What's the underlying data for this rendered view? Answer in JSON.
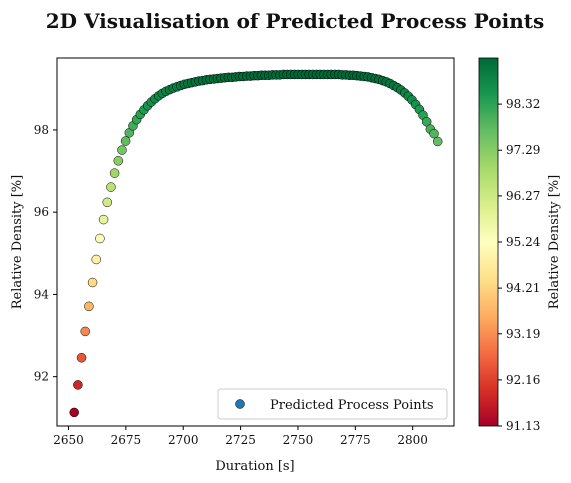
{
  "chart_data": {
    "type": "scatter",
    "title": "2D Visualisation of Predicted Process Points",
    "xlabel": "Duration [s]",
    "ylabel": "Relative Density [%]",
    "xlim": [
      2645,
      2818
    ],
    "ylim": [
      90.8,
      99.75
    ],
    "xticks": [
      2650,
      2675,
      2700,
      2725,
      2750,
      2775,
      2800
    ],
    "yticks": [
      92,
      94,
      96,
      98
    ],
    "colormap": "RdYlGn",
    "colorbar": {
      "label": "Relative Density [%]",
      "ticks": [
        91.13,
        92.16,
        93.19,
        94.21,
        95.24,
        96.27,
        97.29,
        98.32
      ],
      "range": [
        91.13,
        99.35
      ]
    },
    "legend": {
      "label": "Predicted Process Points",
      "placement": "lower right",
      "marker_color": "#1f77b4"
    },
    "grid": false,
    "series": [
      {
        "name": "Predicted Process Points",
        "x": [
          2652.5,
          2654.1,
          2655.7,
          2657.3,
          2658.9,
          2660.5,
          2662.1,
          2663.7,
          2665.3,
          2666.9,
          2668.5,
          2670.1,
          2671.7,
          2673.3,
          2674.9,
          2676.5,
          2678.1,
          2679.7,
          2681.3,
          2682.9,
          2684.5,
          2686.1,
          2687.7,
          2689.3,
          2690.9,
          2692.5,
          2694.1,
          2695.7,
          2697.3,
          2698.9,
          2700.5,
          2702.1,
          2703.7,
          2705.3,
          2706.9,
          2708.5,
          2710.1,
          2711.7,
          2713.3,
          2714.9,
          2716.5,
          2718.1,
          2719.7,
          2721.3,
          2722.9,
          2724.5,
          2726.1,
          2727.7,
          2729.3,
          2730.9,
          2732.5,
          2734.1,
          2735.7,
          2737.3,
          2738.9,
          2740.5,
          2742.1,
          2743.7,
          2745.3,
          2746.9,
          2748.5,
          2750.1,
          2751.7,
          2753.3,
          2754.9,
          2756.5,
          2758.1,
          2759.7,
          2761.3,
          2762.9,
          2764.5,
          2766.1,
          2767.7,
          2769.3,
          2770.9,
          2772.5,
          2774.1,
          2775.7,
          2777.3,
          2778.9,
          2780.5,
          2782.1,
          2783.7,
          2785.3,
          2786.9,
          2788.5,
          2790.1,
          2791.7,
          2793.3,
          2794.9,
          2796.5,
          2798.1,
          2799.7,
          2801.3,
          2802.9,
          2804.5,
          2806.1,
          2807.7,
          2809.3,
          2810.9
        ],
        "y": [
          91.13,
          91.8,
          92.46,
          93.1,
          93.71,
          94.29,
          94.85,
          95.36,
          95.82,
          96.24,
          96.61,
          96.95,
          97.25,
          97.51,
          97.73,
          97.93,
          98.1,
          98.25,
          98.38,
          98.49,
          98.59,
          98.68,
          98.76,
          98.83,
          98.89,
          98.94,
          98.98,
          99.02,
          99.05,
          99.08,
          99.11,
          99.13,
          99.15,
          99.17,
          99.19,
          99.2,
          99.22,
          99.23,
          99.24,
          99.25,
          99.26,
          99.27,
          99.28,
          99.28,
          99.29,
          99.3,
          99.3,
          99.31,
          99.31,
          99.32,
          99.32,
          99.33,
          99.33,
          99.33,
          99.34,
          99.34,
          99.34,
          99.35,
          99.35,
          99.35,
          99.35,
          99.35,
          99.35,
          99.35,
          99.35,
          99.35,
          99.35,
          99.35,
          99.35,
          99.35,
          99.35,
          99.35,
          99.35,
          99.34,
          99.34,
          99.33,
          99.33,
          99.32,
          99.31,
          99.3,
          99.29,
          99.27,
          99.25,
          99.23,
          99.2,
          99.17,
          99.13,
          99.08,
          99.03,
          98.97,
          98.9,
          98.82,
          98.73,
          98.62,
          98.5,
          98.36,
          98.2,
          98.02,
          97.91,
          97.72
        ]
      }
    ]
  }
}
